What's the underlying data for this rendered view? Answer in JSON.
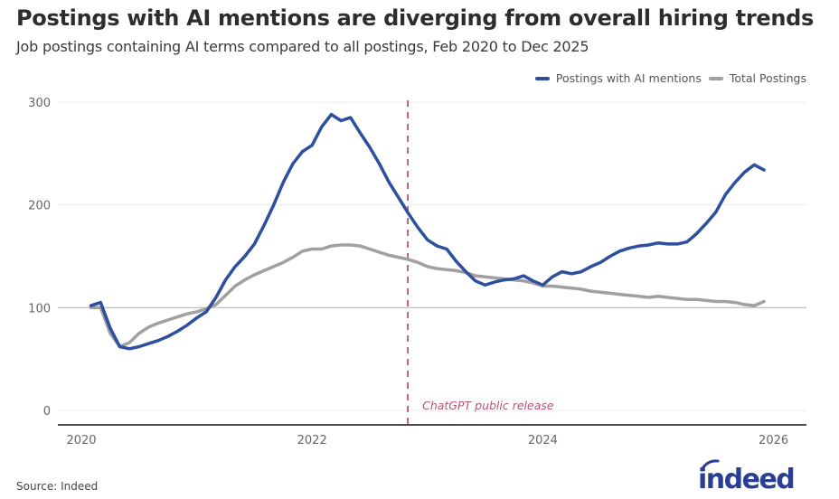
{
  "header": {
    "title": "Postings with AI mentions are diverging from overall hiring trends",
    "subtitle": "Job postings containing AI terms compared to all postings, Feb 2020 to Dec 2025"
  },
  "footer": {
    "source": "Source: Indeed",
    "logo_text": "indeed",
    "logo_color": "#2c3e94"
  },
  "chart_data": {
    "type": "line",
    "title": "Postings with AI mentions are diverging from overall hiring trends",
    "subtitle": "Job postings containing AI terms compared to all postings, Feb 2020 to Dec 2025",
    "xlabel": "",
    "ylabel": "",
    "ylim": [
      0,
      300
    ],
    "xlim": [
      2020.0,
      2026.05
    ],
    "yticks": [
      0,
      100,
      200,
      300
    ],
    "ytick_labels": [
      "0",
      "100",
      "200",
      "300"
    ],
    "xticks": [
      2020,
      2022,
      2024,
      2026
    ],
    "xtick_labels": [
      "2020",
      "2022",
      "2024",
      "2026"
    ],
    "grid": "horizontal",
    "baseline": 100,
    "legend": "top-right",
    "x_start": "2020-02",
    "x_step": "month",
    "series": [
      {
        "name": "Postings with AI mentions",
        "color": "#2c4f9e",
        "values": [
          102,
          105,
          80,
          62,
          60,
          62,
          65,
          68,
          72,
          77,
          83,
          90,
          96,
          110,
          127,
          140,
          150,
          162,
          180,
          200,
          222,
          240,
          252,
          258,
          276,
          288,
          282,
          285,
          270,
          256,
          240,
          222,
          207,
          192,
          178,
          166,
          160,
          157,
          145,
          135,
          126,
          122,
          125,
          127,
          128,
          131,
          126,
          122,
          130,
          135,
          133,
          135,
          140,
          144,
          150,
          155,
          158,
          160,
          161,
          163,
          162,
          162,
          164,
          172,
          182,
          193,
          210,
          222,
          232,
          239,
          234
        ]
      },
      {
        "name": "Total Postings",
        "color": "#a0a0a0",
        "values": [
          100,
          100,
          75,
          62,
          66,
          75,
          81,
          85,
          88,
          91,
          94,
          96,
          99,
          103,
          112,
          121,
          127,
          132,
          136,
          140,
          144,
          149,
          155,
          157,
          157,
          160,
          161,
          161,
          160,
          157,
          154,
          151,
          149,
          147,
          144,
          140,
          138,
          137,
          136,
          134,
          131,
          130,
          129,
          128,
          127,
          126,
          124,
          121,
          121,
          120,
          119,
          118,
          116,
          115,
          114,
          113,
          112,
          111,
          110,
          111,
          110,
          109,
          108,
          108,
          107,
          106,
          106,
          105,
          103,
          102,
          106
        ]
      }
    ],
    "annotations": [
      {
        "type": "vline",
        "x": 2022.83,
        "label": "ChatGPT public release",
        "color": "#b5527a",
        "style": "dashed"
      }
    ]
  }
}
